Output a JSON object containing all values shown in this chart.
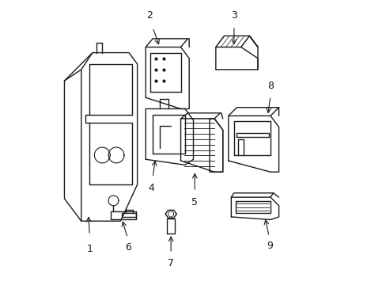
{
  "background_color": "#ffffff",
  "line_color": "#1a1a1a",
  "line_width": 1.0,
  "label_fontsize": 9
}
